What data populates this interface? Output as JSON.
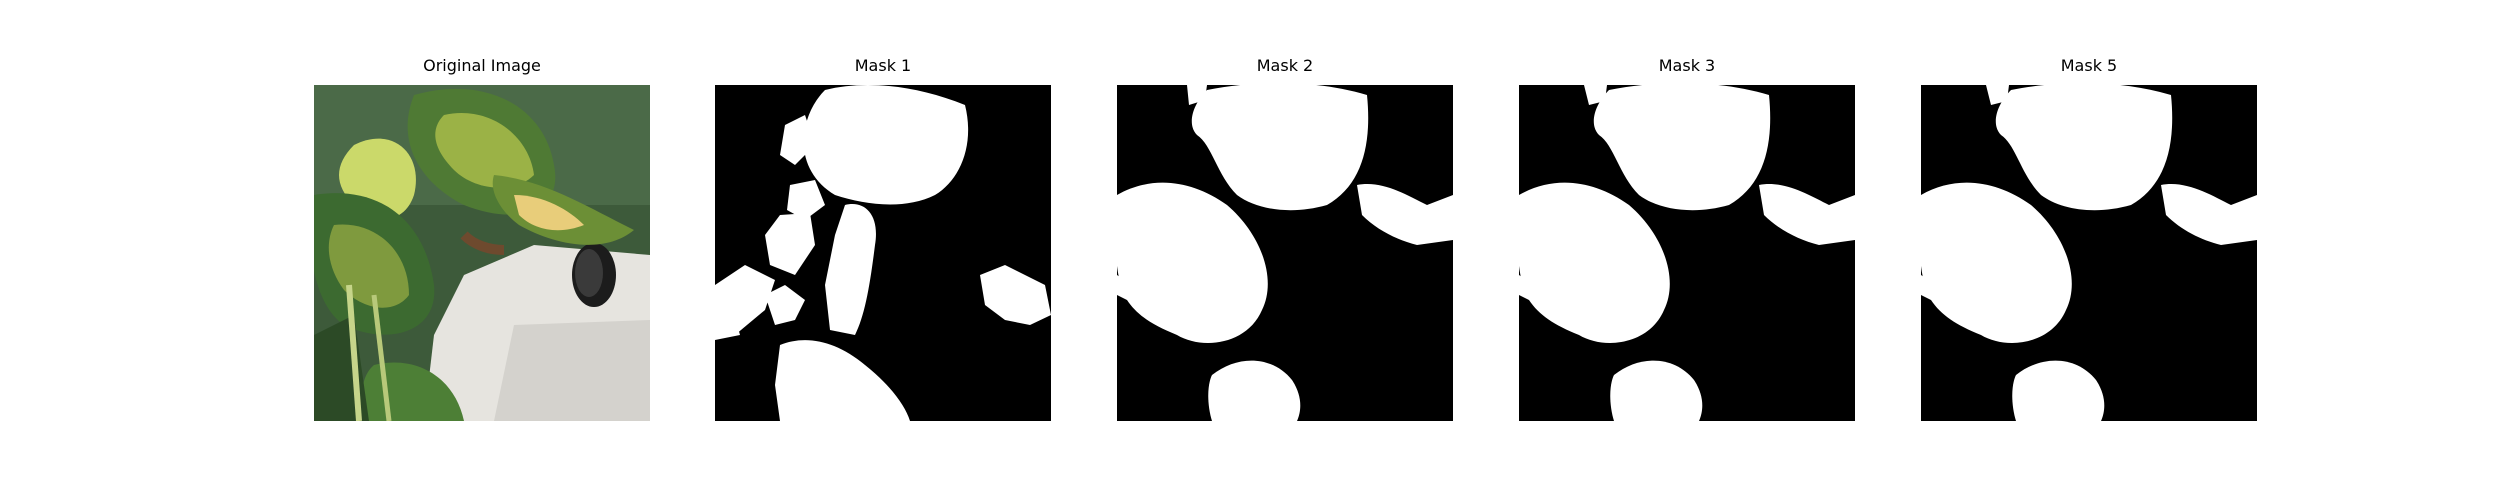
{
  "panels": [
    {
      "title": "Original Image"
    },
    {
      "title": "Mask 1"
    },
    {
      "title": "Mask 2"
    },
    {
      "title": "Mask 3"
    },
    {
      "title": "Mask 5"
    }
  ],
  "colors": {
    "background": "#ffffff",
    "mask_background": "#000000",
    "mask_foreground": "#ffffff",
    "leaf_dark": "#2f5a2a",
    "leaf_light": "#c8d86a",
    "pot_white": "#e8e6e2"
  }
}
